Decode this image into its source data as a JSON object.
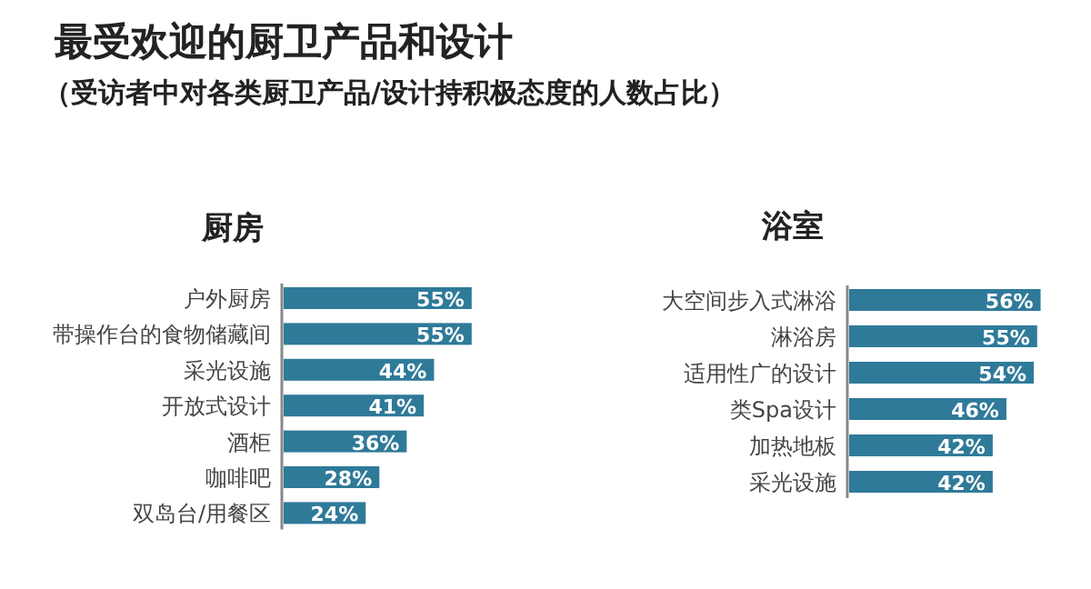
{
  "chart_data": [
    {
      "type": "other",
      "title": "最受欢迎的厨卫产品和设计",
      "subtitle": "（受访者中对各类厨卫产品/设计持积极态度的人数占比）"
    },
    {
      "type": "bar",
      "orientation": "horizontal",
      "title": "厨房",
      "categories": [
        "户外厨房",
        "带操作台的食物储藏间",
        "采光设施",
        "开放式设计",
        "酒柜",
        "咖啡吧",
        "双岛台/用餐区"
      ],
      "values": [
        55,
        55,
        44,
        41,
        36,
        28,
        24
      ],
      "value_labels": [
        "55%",
        "55%",
        "44%",
        "41%",
        "36%",
        "28%",
        "24%"
      ],
      "color": "#2f7a99"
    },
    {
      "type": "bar",
      "orientation": "horizontal",
      "title": "浴室",
      "categories": [
        "大空间步入式淋浴",
        "淋浴房",
        "适用性广的设计",
        "类Spa设计",
        "加热地板",
        "采光设施"
      ],
      "values": [
        56,
        55,
        54,
        46,
        42,
        42
      ],
      "value_labels": [
        "56%",
        "55%",
        "54%",
        "46%",
        "42%",
        "42%"
      ],
      "color": "#2f7a99"
    }
  ]
}
